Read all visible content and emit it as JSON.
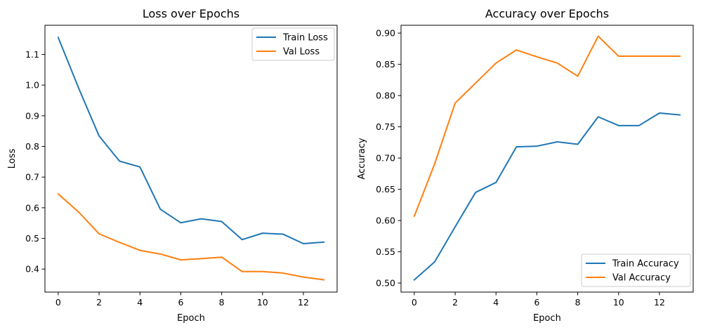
{
  "colors": {
    "train": "#1f77b4",
    "val": "#ff7f0e"
  },
  "chart_data": [
    {
      "type": "line",
      "title": "Loss over Epochs",
      "xlabel": "Epoch",
      "ylabel": "Loss",
      "xlim": [
        -0.65,
        13.65
      ],
      "ylim": [
        0.325,
        1.195
      ],
      "xticks": [
        0,
        2,
        4,
        6,
        8,
        10,
        12
      ],
      "xtick_labels": [
        "0",
        "2",
        "4",
        "6",
        "8",
        "10",
        "12"
      ],
      "yticks": [
        0.4,
        0.5,
        0.6,
        0.7,
        0.8,
        0.9,
        1.0,
        1.1
      ],
      "ytick_labels": [
        "0.4",
        "0.5",
        "0.6",
        "0.7",
        "0.8",
        "0.9",
        "1.0",
        "1.1"
      ],
      "grid": false,
      "legend_position": "top-right",
      "x": [
        0,
        1,
        2,
        3,
        4,
        5,
        6,
        7,
        8,
        9,
        10,
        11,
        12,
        13
      ],
      "series": [
        {
          "name": "Train Loss",
          "color_key": "train",
          "values": [
            1.155,
            0.99,
            0.834,
            0.752,
            0.733,
            0.595,
            0.551,
            0.564,
            0.555,
            0.496,
            0.517,
            0.514,
            0.483,
            0.488
          ]
        },
        {
          "name": "Val Loss",
          "color_key": "val",
          "values": [
            0.645,
            0.586,
            0.515,
            0.487,
            0.461,
            0.449,
            0.43,
            0.434,
            0.439,
            0.392,
            0.392,
            0.387,
            0.374,
            0.365
          ]
        }
      ]
    },
    {
      "type": "line",
      "title": "Accuracy over Epochs",
      "xlabel": "Epoch",
      "ylabel": "Accuracy",
      "xlim": [
        -0.65,
        13.65
      ],
      "ylim": [
        0.4855,
        0.9125
      ],
      "xticks": [
        0,
        2,
        4,
        6,
        8,
        10,
        12
      ],
      "xtick_labels": [
        "0",
        "2",
        "4",
        "6",
        "8",
        "10",
        "12"
      ],
      "yticks": [
        0.5,
        0.55,
        0.6,
        0.65,
        0.7,
        0.75,
        0.8,
        0.85,
        0.9
      ],
      "ytick_labels": [
        "0.50",
        "0.55",
        "0.60",
        "0.65",
        "0.70",
        "0.75",
        "0.80",
        "0.85",
        "0.90"
      ],
      "grid": false,
      "legend_position": "bottom-right",
      "x": [
        0,
        1,
        2,
        3,
        4,
        5,
        6,
        7,
        8,
        9,
        10,
        11,
        12,
        13
      ],
      "series": [
        {
          "name": "Train Accuracy",
          "color_key": "train",
          "values": [
            0.505,
            0.534,
            0.59,
            0.645,
            0.661,
            0.718,
            0.719,
            0.726,
            0.722,
            0.766,
            0.752,
            0.752,
            0.772,
            0.769
          ]
        },
        {
          "name": "Val Accuracy",
          "color_key": "val",
          "values": [
            0.607,
            0.691,
            0.788,
            0.82,
            0.852,
            0.873,
            0.862,
            0.852,
            0.831,
            0.895,
            0.863,
            0.863,
            0.863,
            0.863
          ]
        }
      ]
    }
  ]
}
